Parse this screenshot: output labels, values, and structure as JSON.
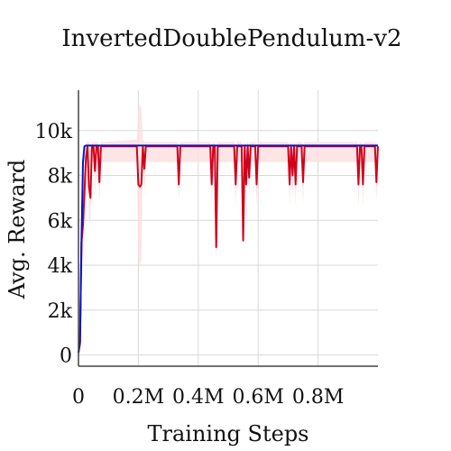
{
  "chart_data": {
    "type": "line",
    "title": "InvertedDoublePendulum-v2",
    "xlabel": "Training Steps",
    "ylabel": "Avg. Reward",
    "xlim": [
      0,
      1000000
    ],
    "ylim": [
      -500,
      11800
    ],
    "x_ticks": [
      {
        "value": 0,
        "label": "0"
      },
      {
        "value": 200000,
        "label": "0.2M"
      },
      {
        "value": 400000,
        "label": "0.4M"
      },
      {
        "value": 600000,
        "label": "0.6M"
      },
      {
        "value": 800000,
        "label": "0.8M"
      }
    ],
    "y_ticks": [
      {
        "value": 0,
        "label": "0"
      },
      {
        "value": 2000,
        "label": "2k"
      },
      {
        "value": 4000,
        "label": "4k"
      },
      {
        "value": 6000,
        "label": "6k"
      },
      {
        "value": 8000,
        "label": "8k"
      },
      {
        "value": 10000,
        "label": "10k"
      }
    ],
    "grid": true,
    "legend": "none",
    "series": [
      {
        "color": "#0a14c8",
        "x": [
          0,
          5000,
          10000,
          15000,
          20000,
          25000,
          1000000
        ],
        "y": [
          100,
          600,
          5000,
          8600,
          9300,
          9330,
          9330
        ]
      },
      {
        "color": "#d0021b",
        "band_color": "#fde0e0",
        "x": [
          0,
          5000,
          10000,
          15000,
          20000,
          25000,
          30000,
          35000,
          40000,
          45000,
          50000,
          55000,
          60000,
          65000,
          70000,
          75000,
          80000,
          85000,
          90000,
          195000,
          200000,
          205000,
          210000,
          215000,
          220000,
          225000,
          230000,
          330000,
          335000,
          340000,
          345000,
          440000,
          445000,
          450000,
          455000,
          460000,
          465000,
          470000,
          520000,
          525000,
          530000,
          545000,
          550000,
          555000,
          560000,
          565000,
          570000,
          575000,
          580000,
          590000,
          595000,
          600000,
          700000,
          705000,
          710000,
          715000,
          720000,
          725000,
          730000,
          735000,
          745000,
          750000,
          755000,
          930000,
          935000,
          940000,
          945000,
          950000,
          955000,
          960000,
          990000,
          995000,
          1000000
        ],
        "y": [
          100,
          500,
          5000,
          5800,
          7200,
          8800,
          9300,
          7500,
          7000,
          9300,
          9300,
          8200,
          9300,
          9300,
          7700,
          9300,
          9300,
          9300,
          9300,
          9300,
          7600,
          7500,
          7600,
          9300,
          8300,
          9300,
          9300,
          9300,
          7600,
          9300,
          9300,
          9300,
          7600,
          9300,
          9300,
          4800,
          9300,
          9300,
          9300,
          7600,
          9300,
          9300,
          5100,
          9300,
          7600,
          9300,
          7900,
          9300,
          9300,
          9300,
          7600,
          9300,
          9300,
          7600,
          9300,
          8000,
          9300,
          7600,
          9300,
          9300,
          9300,
          7700,
          9300,
          9300,
          7600,
          9300,
          9300,
          7600,
          9300,
          9300,
          9300,
          7700,
          9300
        ],
        "band_low": [
          0,
          200,
          3000,
          4000,
          5500,
          7000,
          8600,
          6000,
          5800,
          8600,
          8600,
          7000,
          8600,
          8600,
          6800,
          8600,
          8600,
          8600,
          8600,
          8600,
          4200,
          4000,
          4200,
          8600,
          7000,
          8600,
          8600,
          8600,
          6800,
          8600,
          8600,
          8600,
          6500,
          8600,
          8600,
          4000,
          8600,
          8600,
          8600,
          6500,
          8600,
          8600,
          4500,
          8600,
          6500,
          8600,
          7000,
          8600,
          8600,
          8600,
          6600,
          8600,
          8600,
          6600,
          8600,
          7000,
          8600,
          6600,
          8600,
          8600,
          8600,
          6700,
          8600,
          8600,
          6600,
          8600,
          8600,
          6600,
          8600,
          8600,
          8600,
          6800,
          8600
        ],
        "band_high": [
          300,
          900,
          6500,
          7200,
          8600,
          9500,
          9500,
          9500,
          9300,
          9500,
          9500,
          9500,
          9500,
          9500,
          9200,
          9500,
          9500,
          9500,
          9500,
          9600,
          11000,
          11200,
          11000,
          9600,
          9500,
          9500,
          9500,
          9500,
          9300,
          9500,
          9500,
          9500,
          9400,
          9500,
          9500,
          9200,
          9500,
          9500,
          9500,
          9400,
          9500,
          9500,
          9200,
          9500,
          9400,
          9500,
          9400,
          9500,
          9500,
          9500,
          9400,
          9500,
          9500,
          9400,
          9500,
          9400,
          9500,
          9400,
          9500,
          9500,
          9500,
          9400,
          9500,
          9500,
          9400,
          9500,
          9500,
          9400,
          9500,
          9500,
          9500,
          9400,
          9500
        ]
      }
    ]
  }
}
